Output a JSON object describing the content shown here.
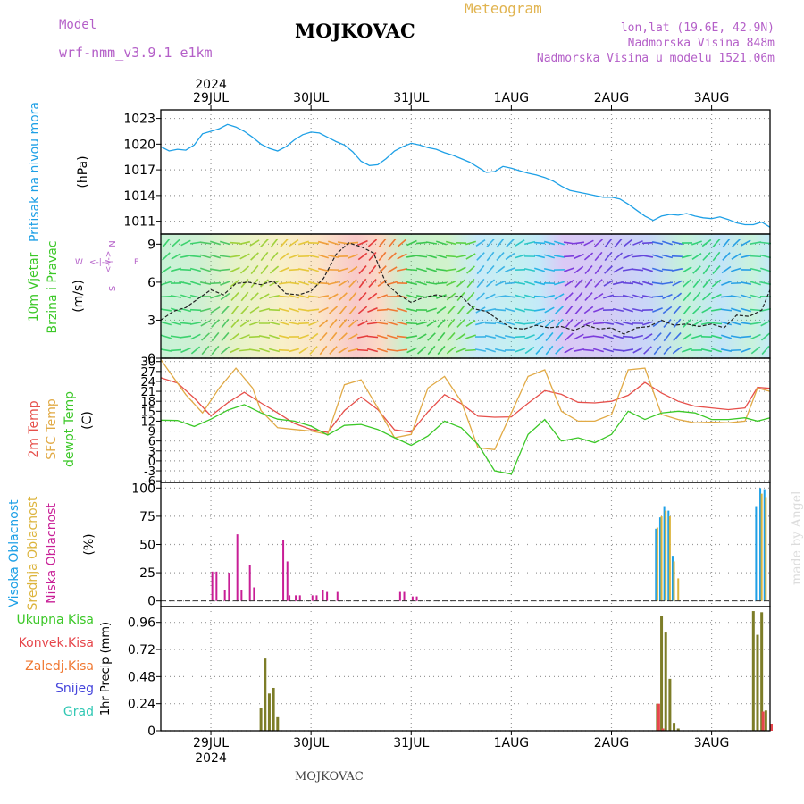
{
  "header": {
    "model_label": "Model",
    "model_name": "wrf-nmm_v3.9.1  e1km",
    "location": "MOJKOVAC",
    "chart_kind": "Meteogram",
    "coords": "lon,lat (19.6E, 42.9N)",
    "elevation": "Nadmorska Visina 848m",
    "model_elevation": "Nadmorska Visina u modelu 1521.06m",
    "footer_location": "MOJKOVAC",
    "watermark": "made by Angel"
  },
  "colors": {
    "pressure": "#1ea0e6",
    "temp2m": "#e6504b",
    "sfc": "#e1aa46",
    "dew": "#3cc828",
    "high_cloud": "#1ea0e6",
    "mid_cloud": "#dcb43c",
    "low_cloud": "#c81e96",
    "total_precip": "#3cc828",
    "conv_precip": "#e6464b",
    "frozen_precip": "#f07832",
    "snow": "#4646dc",
    "graupel": "#32c8b4",
    "precip_bar": "#7d7d28"
  },
  "chart_data": {
    "type": "line",
    "x_axis": {
      "year_label": "2024",
      "dates": [
        "29JUL",
        "30JUL",
        "31JUL",
        "1AUG",
        "2AUG",
        "3AUG"
      ],
      "range_hours": [
        0,
        146
      ],
      "date_tick_hours": [
        12,
        36,
        60,
        84,
        108,
        132
      ]
    },
    "panels": [
      {
        "name": "pressure",
        "labels": [
          "Pritisak na nivou mora"
        ],
        "unit": "(hPa)",
        "ylim": [
          1009.5,
          1024
        ],
        "yticks": [
          1011,
          1014,
          1017,
          1020,
          1023
        ],
        "series": [
          {
            "name": "Pritisak na nivou mora",
            "x": [
              0,
              2,
              4,
              6,
              8,
              10,
              12,
              14,
              16,
              18,
              20,
              22,
              24,
              26,
              28,
              30,
              32,
              34,
              36,
              38,
              40,
              42,
              44,
              46,
              48,
              50,
              52,
              54,
              56,
              58,
              60,
              62,
              64,
              66,
              68,
              70,
              72,
              74,
              76,
              78,
              80,
              82,
              84,
              86,
              88,
              90,
              92,
              94,
              96,
              98,
              100,
              102,
              104,
              106,
              108,
              110,
              112,
              114,
              116,
              118,
              120,
              122,
              124,
              126,
              128,
              130,
              132,
              134,
              136,
              138,
              140,
              142,
              144,
              146
            ],
            "y": [
              1019.7,
              1019.2,
              1019.4,
              1019.3,
              1019.9,
              1021.2,
              1021.5,
              1021.8,
              1022.3,
              1022.0,
              1021.5,
              1020.8,
              1020.0,
              1019.5,
              1019.2,
              1019.7,
              1020.5,
              1021.1,
              1021.4,
              1021.3,
              1020.8,
              1020.3,
              1019.9,
              1019.1,
              1018.0,
              1017.5,
              1017.6,
              1018.3,
              1019.2,
              1019.7,
              1020.1,
              1019.9,
              1019.6,
              1019.4,
              1019.0,
              1018.7,
              1018.3,
              1017.9,
              1017.3,
              1016.7,
              1016.8,
              1017.4,
              1017.2,
              1016.9,
              1016.6,
              1016.4,
              1016.1,
              1015.7,
              1015.1,
              1014.6,
              1014.4,
              1014.2,
              1014.0,
              1013.8,
              1013.8,
              1013.6,
              1013.0,
              1012.3,
              1011.6,
              1011.1,
              1011.6,
              1011.8,
              1011.7,
              1011.9,
              1011.6,
              1011.4,
              1011.3,
              1011.5,
              1011.2,
              1010.8,
              1010.6,
              1010.6,
              1010.9,
              1010.3
            ]
          }
        ]
      },
      {
        "name": "wind",
        "labels": [
          "10m Vjetar",
          "Brzina i Pravac"
        ],
        "unit": "(m/s)",
        "ylim": [
          0,
          9.8
        ],
        "yticks": [
          0,
          3,
          6,
          9
        ],
        "compass": {
          "n": "N",
          "e": "E",
          "s": "S",
          "w": "W",
          "arrows": "<-|->"
        },
        "series": [
          {
            "name": "speed_mean",
            "x": [
              0,
              3,
              6,
              9,
              12,
              15,
              18,
              21,
              24,
              27,
              30,
              33,
              36,
              39,
              42,
              45,
              48,
              51,
              54,
              57,
              60,
              63,
              66,
              69,
              72,
              75,
              78,
              81,
              84,
              87,
              90,
              93,
              96,
              99,
              102,
              105,
              108,
              111,
              114,
              117,
              120,
              123,
              126,
              129,
              132,
              135,
              138,
              141,
              144,
              146
            ],
            "y": [
              3.0,
              3.7,
              4.0,
              4.7,
              5.4,
              5.0,
              5.9,
              6.0,
              5.8,
              6.1,
              5.1,
              5.0,
              5.3,
              6.3,
              8.2,
              9.1,
              8.8,
              8.3,
              5.9,
              5.0,
              4.4,
              4.8,
              5.0,
              4.8,
              4.9,
              3.9,
              3.7,
              3.0,
              2.4,
              2.3,
              2.6,
              2.4,
              2.5,
              2.2,
              2.6,
              2.3,
              2.4,
              1.9,
              2.4,
              2.5,
              3.0,
              2.6,
              2.7,
              2.5,
              2.7,
              2.4,
              3.4,
              3.3,
              3.8,
              5.4
            ]
          }
        ]
      },
      {
        "name": "temperature",
        "labels": [
          "2m Temp",
          "SFC Temp",
          "dewpt Temp"
        ],
        "unit": "(C)",
        "ylim": [
          -6.5,
          31
        ],
        "yticks": [
          -6,
          -3,
          0,
          3,
          6,
          9,
          12,
          15,
          18,
          21,
          24,
          27,
          30
        ],
        "series": [
          {
            "name": "2m Temp",
            "x": [
              0,
              4,
              8,
              12,
              16,
              20,
              24,
              28,
              32,
              36,
              40,
              44,
              48,
              52,
              56,
              60,
              64,
              68,
              72,
              76,
              80,
              84,
              88,
              92,
              96,
              100,
              104,
              108,
              112,
              116,
              120,
              124,
              128,
              132,
              136,
              140,
              143,
              146
            ],
            "y": [
              25.1,
              23.5,
              19.0,
              13.6,
              17.5,
              20.7,
              17.5,
              14.5,
              11.3,
              9.5,
              8.6,
              15.2,
              19.3,
              15.5,
              9.4,
              8.7,
              14.8,
              20.0,
              17.3,
              13.5,
              13.2,
              13.3,
              17.4,
              21.2,
              20.1,
              17.7,
              17.5,
              18.0,
              19.8,
              23.7,
              20.5,
              18.0,
              16.5,
              16.0,
              15.5,
              16.0,
              22.2,
              21.9
            ]
          },
          {
            "name": "SFC Temp",
            "x": [
              0,
              2,
              6,
              10,
              14,
              18,
              22,
              24,
              28,
              32,
              36,
              40,
              44,
              48,
              52,
              56,
              60,
              64,
              68,
              72,
              76,
              80,
              84,
              88,
              92,
              96,
              100,
              104,
              108,
              112,
              116,
              120,
              124,
              128,
              132,
              136,
              140,
              143,
              146
            ],
            "y": [
              30.6,
              27.0,
              20.0,
              14.5,
              22.0,
              28.0,
              22.0,
              15.2,
              10.0,
              9.5,
              9.0,
              8.0,
              23.0,
              24.5,
              16.0,
              7.0,
              8.0,
              22.0,
              25.5,
              18.0,
              4.0,
              3.4,
              14.5,
              25.5,
              27.5,
              15.0,
              12.0,
              12.0,
              14.0,
              27.5,
              28.0,
              14.0,
              12.5,
              11.5,
              11.7,
              11.5,
              12.0,
              22.0,
              21.0
            ]
          },
          {
            "name": "dewpt Temp",
            "x": [
              0,
              4,
              8,
              12,
              16,
              20,
              24,
              28,
              32,
              36,
              40,
              44,
              48,
              52,
              56,
              60,
              64,
              68,
              72,
              76,
              80,
              84,
              88,
              92,
              96,
              100,
              104,
              108,
              112,
              116,
              120,
              124,
              128,
              132,
              136,
              140,
              143,
              146
            ],
            "y": [
              12.3,
              12.2,
              10.4,
              12.6,
              15.3,
              17.0,
              14.5,
              12.6,
              12.0,
              10.5,
              7.8,
              10.7,
              11.0,
              9.5,
              7.0,
              4.7,
              7.5,
              12.0,
              10.0,
              5.0,
              -3.0,
              -4.0,
              8.0,
              12.5,
              6.0,
              7.0,
              5.5,
              8.0,
              15.0,
              12.5,
              14.5,
              15.0,
              14.5,
              12.5,
              12.5,
              13.0,
              12.0,
              13.0
            ]
          }
        ]
      },
      {
        "name": "cloud",
        "labels": [
          "Visoka Oblacnost",
          "Srednja Oblacnost",
          "Niska Oblacnost"
        ],
        "unit": "(%)",
        "ylim": [
          -5,
          105
        ],
        "yticks": [
          0,
          25,
          50,
          75,
          100
        ],
        "series": [
          {
            "name": "Visoka Oblacnost",
            "x": [
              119,
              120,
              121,
              122,
              123,
              143,
              144,
              145
            ],
            "y": [
              64,
              74,
              84,
              80,
              40,
              84,
              100,
              99
            ]
          },
          {
            "name": "Srednja Oblacnost",
            "x": [
              119,
              120,
              121,
              122,
              123,
              124,
              144,
              145
            ],
            "y": [
              65,
              75,
              80,
              75,
              35,
              20,
              95,
              92
            ]
          },
          {
            "name": "Niska Oblacnost",
            "x": [
              12,
              13,
              15,
              16,
              18,
              19,
              21,
              22,
              29,
              30,
              30.5,
              32,
              33,
              36,
              37,
              38.5,
              39.5,
              42,
              57,
              58,
              60,
              61
            ],
            "y": [
              26,
              26,
              10,
              25,
              59,
              10,
              32,
              12,
              54,
              35,
              5,
              5,
              5,
              5,
              5,
              10,
              8,
              8,
              8,
              8,
              4,
              4
            ]
          }
        ]
      },
      {
        "name": "precip",
        "labels": [
          "Ukupna Kisa",
          "Konvek.Kisa",
          "Zaledj.Kisa",
          "Snijeg",
          "Grad"
        ],
        "unit": "1hr Precip (mm)",
        "ylim": [
          0,
          1.1
        ],
        "yticks": [
          0,
          0.24,
          0.48,
          0.72,
          0.96
        ],
        "series": [
          {
            "name": "Ukupna Kisa",
            "x": [
              24,
              25,
              26,
              27,
              28,
              119,
              120,
              121,
              122,
              123,
              124,
              142,
              143,
              144,
              145
            ],
            "y": [
              0.2,
              0.64,
              0.33,
              0.38,
              0.12,
              0.24,
              1.02,
              0.87,
              0.46,
              0.07,
              0.02,
              1.06,
              0.85,
              1.05,
              0.18
            ]
          },
          {
            "name": "Konvek.Kisa",
            "x": [
              119,
              120,
              144,
              146
            ],
            "y": [
              0.24,
              0.02,
              0.17,
              0.06
            ]
          }
        ]
      }
    ]
  }
}
